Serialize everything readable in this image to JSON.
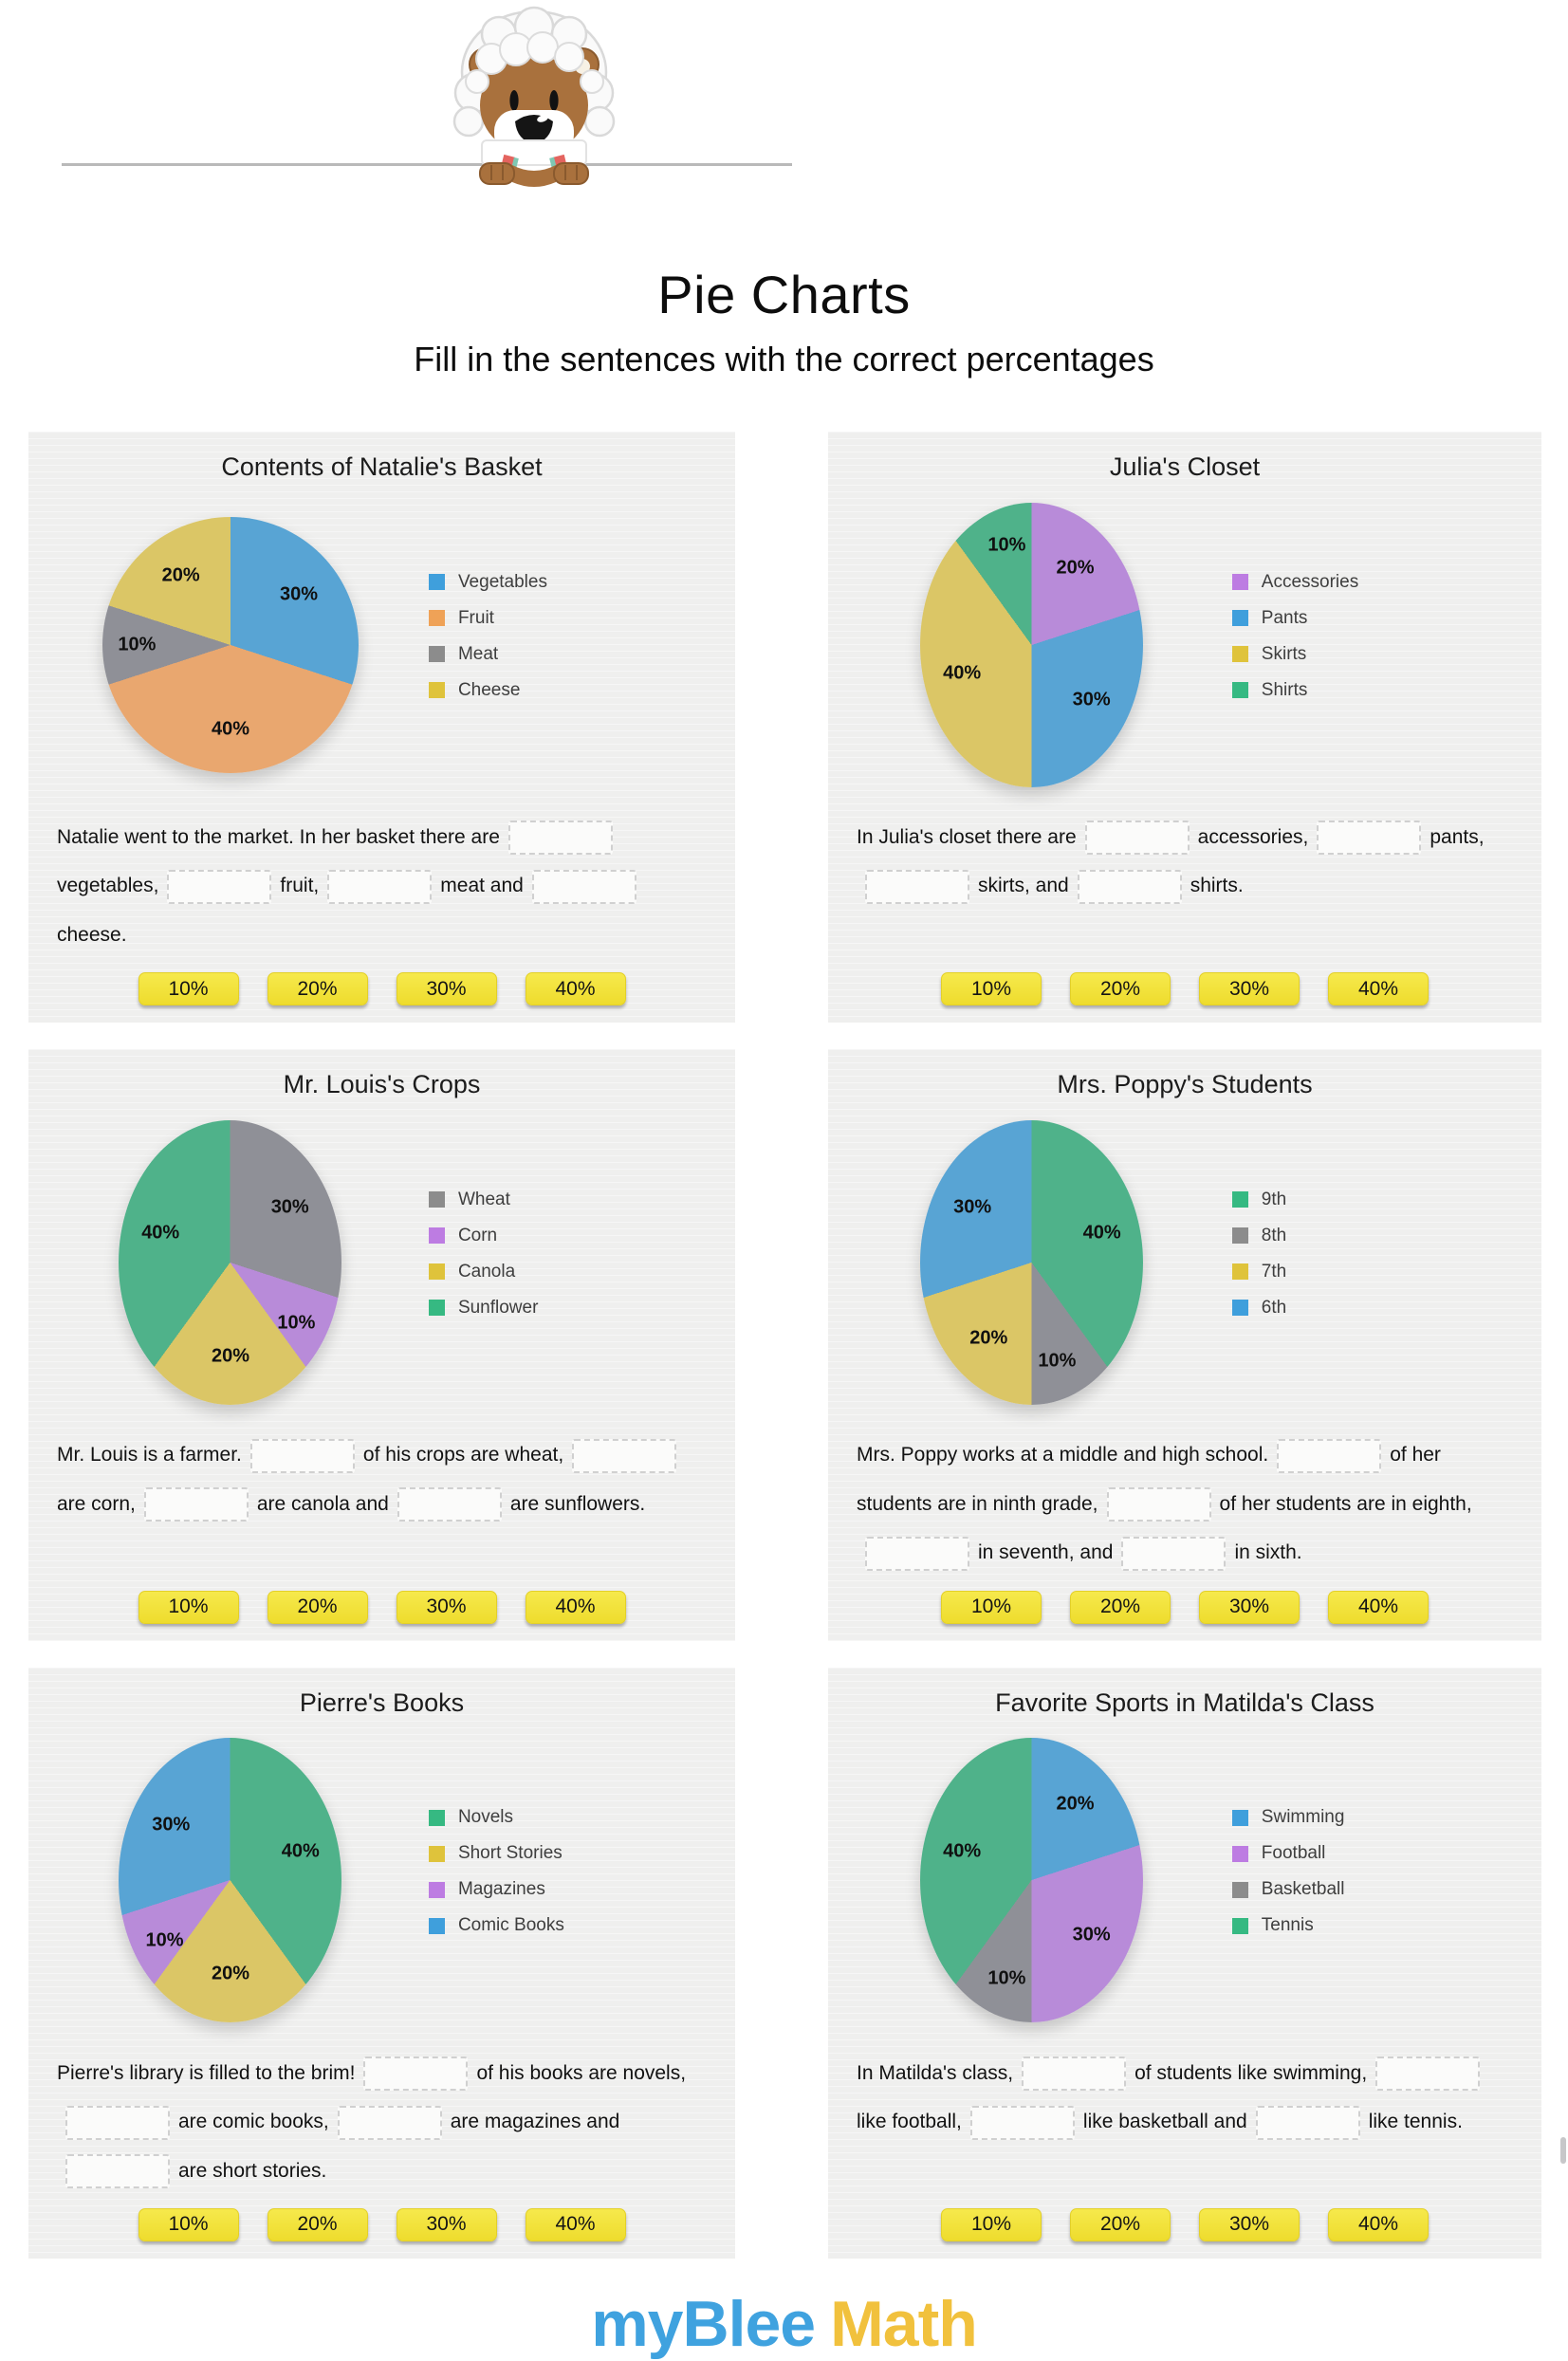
{
  "page": {
    "title": "Pie Charts",
    "subtitle": "Fill in the sentences with the correct percentages",
    "brand": {
      "part1": "myBlee",
      "part2": "Math",
      "color1": "#3fa2df",
      "color2": "#f1c13d"
    }
  },
  "answer_options": [
    "10%",
    "20%",
    "30%",
    "40%"
  ],
  "chart_data": [
    {
      "type": "pie",
      "title": "Contents of Natalie's Basket",
      "legend_position": "right",
      "slices": [
        {
          "label": "Vegetables",
          "value": 30,
          "color": "#58a4d4",
          "legend_color": "#3f9fdc"
        },
        {
          "label": "Fruit",
          "value": 40,
          "color": "#e9a76f",
          "legend_color": "#efa257"
        },
        {
          "label": "Meat",
          "value": 10,
          "color": "#8f9097",
          "legend_color": "#8c8c8c"
        },
        {
          "label": "Cheese",
          "value": 20,
          "color": "#dbc666",
          "legend_color": "#dfc33b"
        }
      ],
      "sentence_parts": [
        "Natalie went to the market. In her basket there are",
        "vegetables,",
        "fruit,",
        "meat and",
        "cheese."
      ]
    },
    {
      "type": "pie",
      "title": "Julia's Closet",
      "legend_position": "right",
      "slices": [
        {
          "label": "Accessories",
          "value": 20,
          "color": "#b88bd9",
          "legend_color": "#bd7ce2"
        },
        {
          "label": "Pants",
          "value": 30,
          "color": "#58a4d4",
          "legend_color": "#3f9fdc"
        },
        {
          "label": "Skirts",
          "value": 40,
          "color": "#dbc666",
          "legend_color": "#dfc33b"
        },
        {
          "label": "Shirts",
          "value": 10,
          "color": "#4fb28a",
          "legend_color": "#36b982"
        }
      ],
      "sentence_parts": [
        "In Julia's closet there are",
        "accessories,",
        "pants,",
        "skirts, and",
        "shirts."
      ]
    },
    {
      "type": "pie",
      "title": "Mr. Louis's Crops",
      "legend_position": "right",
      "slices": [
        {
          "label": "Wheat",
          "value": 30,
          "color": "#8f9097",
          "legend_color": "#8c8c8c"
        },
        {
          "label": "Corn",
          "value": 10,
          "color": "#b88bd9",
          "legend_color": "#bd7ce2"
        },
        {
          "label": "Canola",
          "value": 20,
          "color": "#dbc666",
          "legend_color": "#dfc33b"
        },
        {
          "label": "Sunflower",
          "value": 40,
          "color": "#4fb28a",
          "legend_color": "#36b982"
        }
      ],
      "sentence_parts": [
        "Mr. Louis is a farmer.",
        "of his crops are wheat,",
        "are corn,",
        "are canola and",
        "are sunflowers."
      ]
    },
    {
      "type": "pie",
      "title": "Mrs. Poppy's Students",
      "legend_position": "right",
      "slices": [
        {
          "label": "9th",
          "value": 40,
          "color": "#4fb28a",
          "legend_color": "#36b982"
        },
        {
          "label": "8th",
          "value": 10,
          "color": "#8f9097",
          "legend_color": "#8c8c8c"
        },
        {
          "label": "7th",
          "value": 20,
          "color": "#dbc666",
          "legend_color": "#dfc33b"
        },
        {
          "label": "6th",
          "value": 30,
          "color": "#58a4d4",
          "legend_color": "#3f9fdc"
        }
      ],
      "sentence_parts": [
        "Mrs. Poppy works at a middle and high school.",
        "of her students are in ninth grade,",
        "of her students are in eighth,",
        "in seventh, and",
        "in sixth."
      ]
    },
    {
      "type": "pie",
      "title": "Pierre's Books",
      "legend_position": "right",
      "slices": [
        {
          "label": "Novels",
          "value": 40,
          "color": "#4fb28a",
          "legend_color": "#36b982"
        },
        {
          "label": "Short Stories",
          "value": 20,
          "color": "#dbc666",
          "legend_color": "#dfc33b"
        },
        {
          "label": "Magazines",
          "value": 10,
          "color": "#b88bd9",
          "legend_color": "#bd7ce2"
        },
        {
          "label": "Comic Books",
          "value": 30,
          "color": "#58a4d4",
          "legend_color": "#3f9fdc"
        }
      ],
      "sentence_parts": [
        "Pierre's library is filled to the brim!",
        "of his books are novels,",
        "are comic books,",
        "are magazines and",
        "are short stories."
      ]
    },
    {
      "type": "pie",
      "title": "Favorite Sports in Matilda's Class",
      "legend_position": "right",
      "slices": [
        {
          "label": "Swimming",
          "value": 20,
          "color": "#58a4d4",
          "legend_color": "#3f9fdc"
        },
        {
          "label": "Football",
          "value": 30,
          "color": "#b88bd9",
          "legend_color": "#bd7ce2"
        },
        {
          "label": "Basketball",
          "value": 10,
          "color": "#8f9097",
          "legend_color": "#8c8c8c"
        },
        {
          "label": "Tennis",
          "value": 40,
          "color": "#4fb28a",
          "legend_color": "#36b982"
        }
      ],
      "sentence_parts": [
        "In Matilda's class,",
        "of students like swimming,",
        "like football,",
        "like basketball and",
        "like tennis."
      ]
    }
  ]
}
